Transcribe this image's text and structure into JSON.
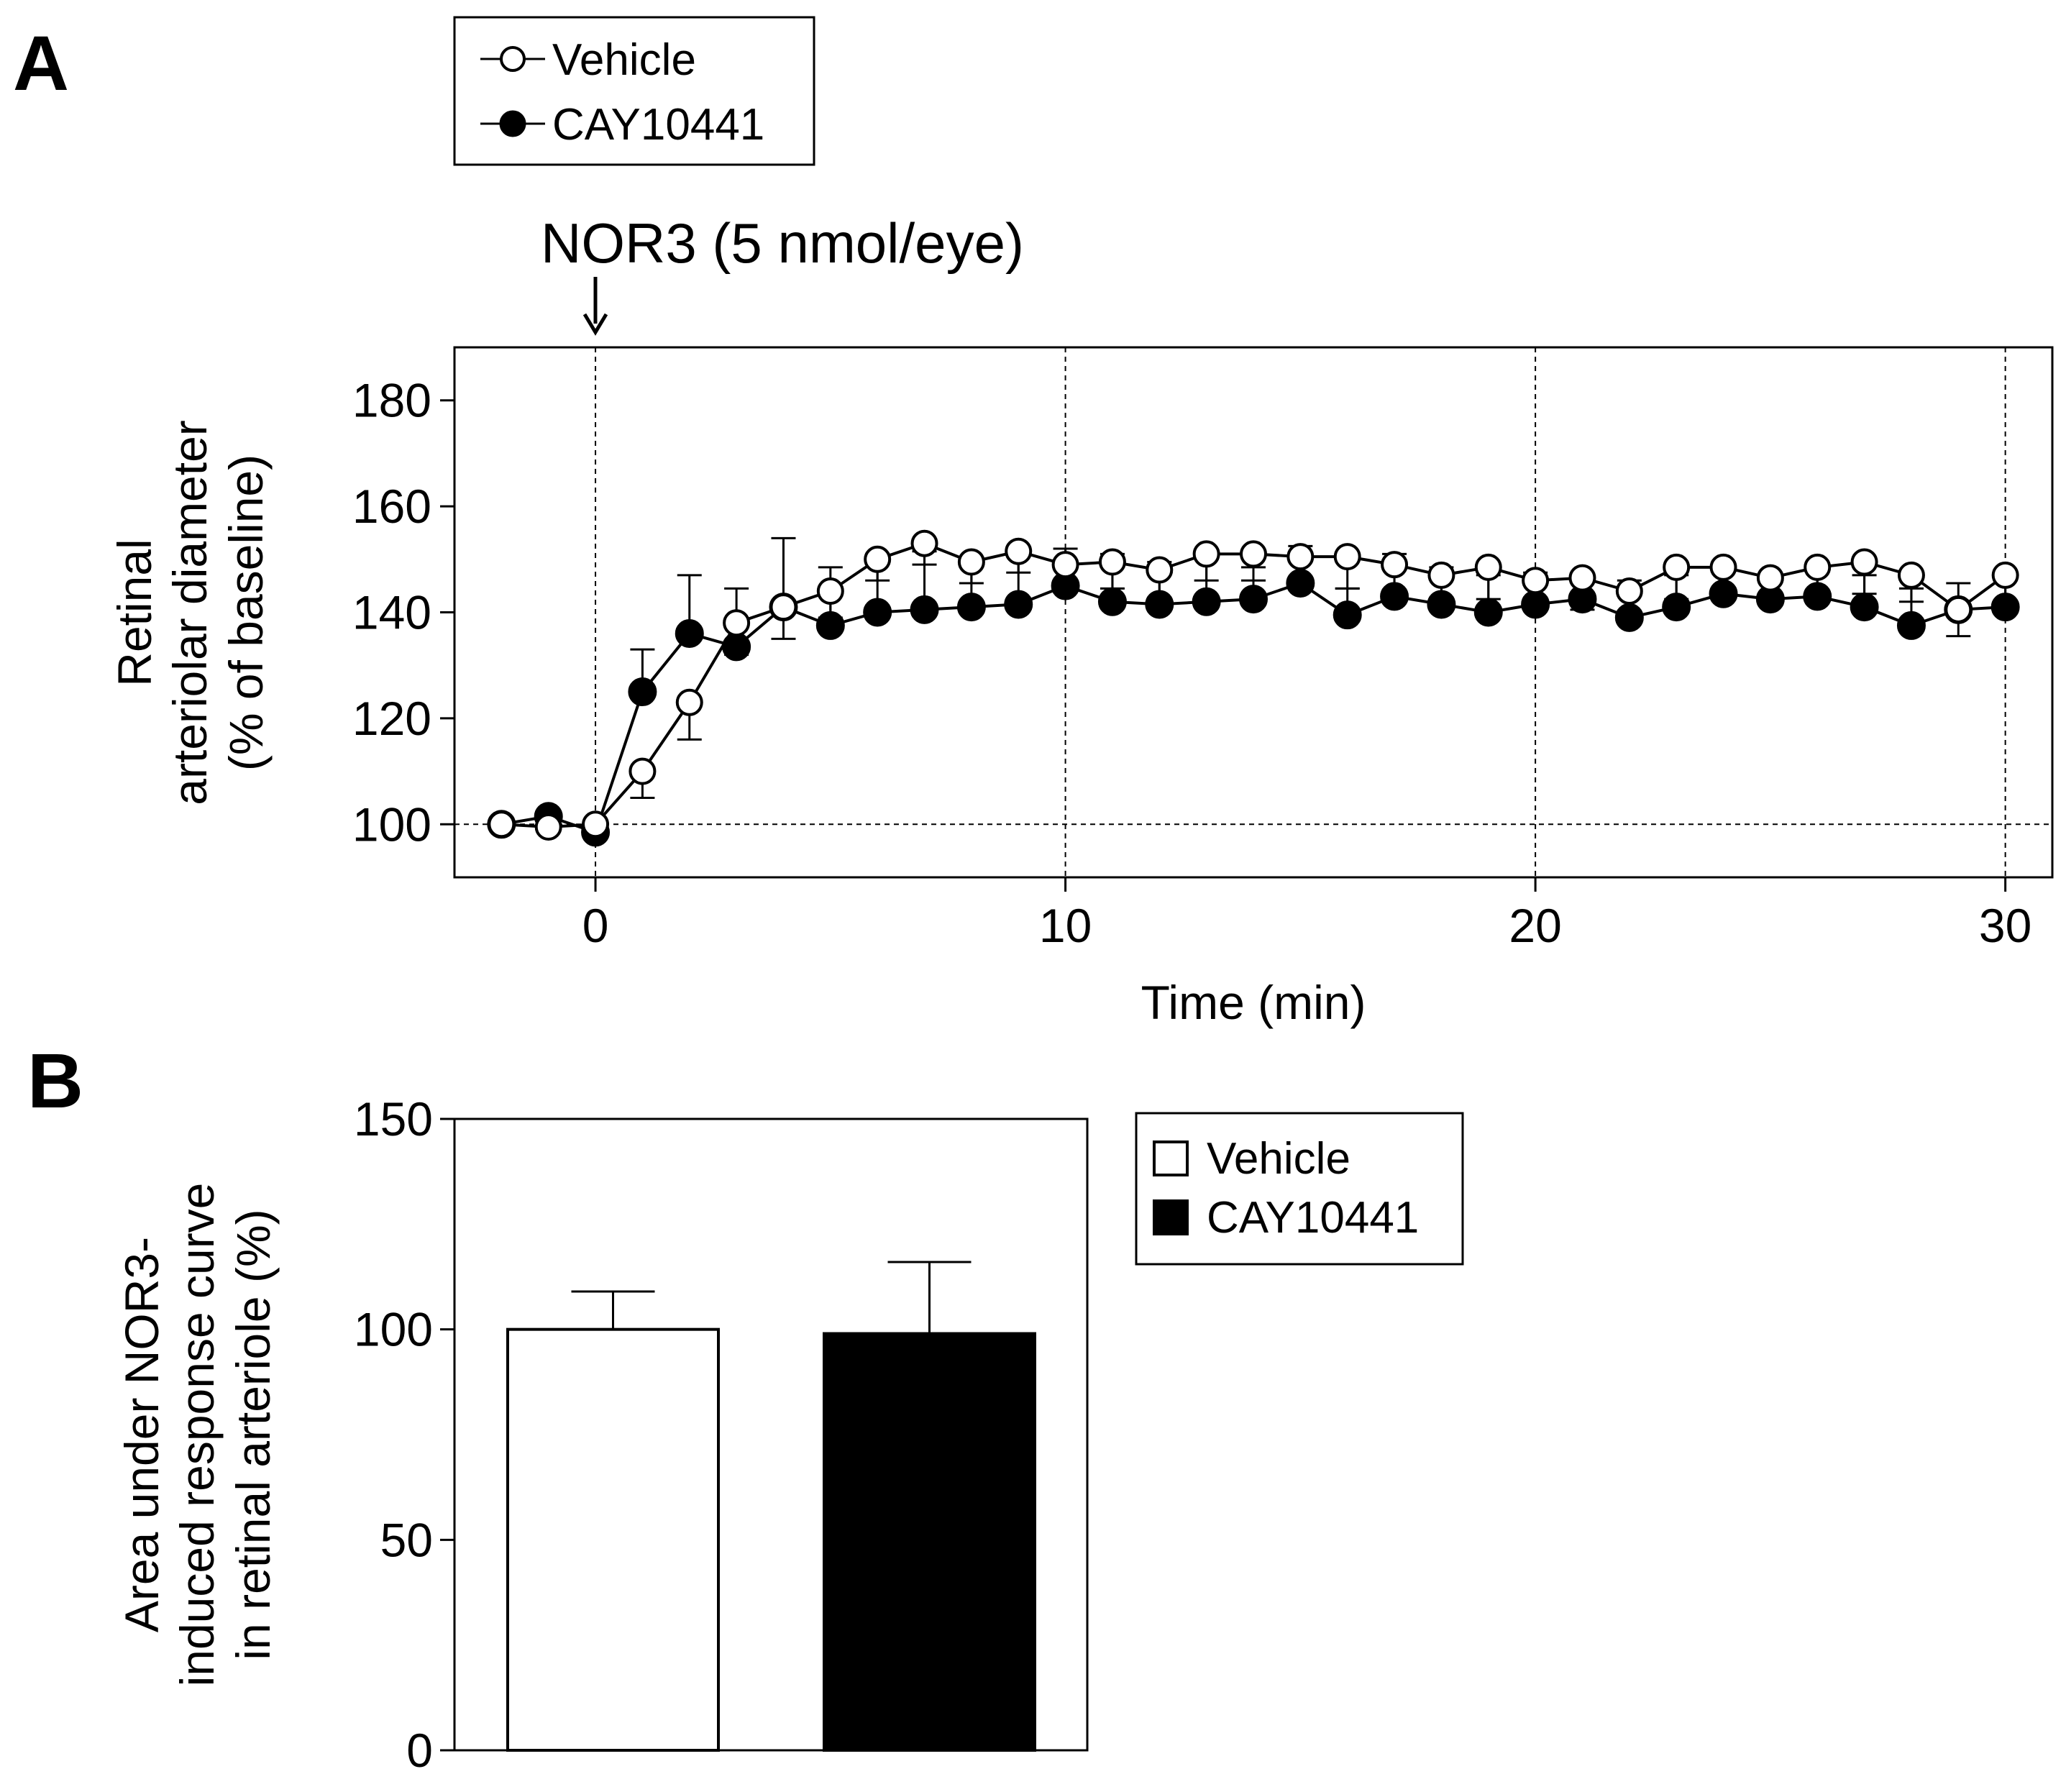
{
  "chart_data": [
    {
      "panel": "A",
      "type": "line",
      "title": "",
      "xlabel": "Time (min)",
      "ylabel": [
        "Retinal",
        "arteriolar diameter",
        "(% of baseline)"
      ],
      "xlim": [
        -3,
        31
      ],
      "ylim": [
        90,
        190
      ],
      "xticks": [
        0,
        10,
        20,
        30
      ],
      "yticks": [
        100,
        120,
        140,
        160,
        180
      ],
      "vlines": [
        0,
        10,
        20,
        30
      ],
      "hline": 100,
      "grid": false,
      "legend_position": "top-left, outside plot",
      "annotation": {
        "text": "NOR3 (5 nmol/eye)",
        "x": 0
      },
      "series": [
        {
          "name": "Vehicle",
          "marker": "open-circle",
          "x": [
            -2,
            -1,
            0,
            1,
            2,
            3,
            4,
            5,
            6,
            7,
            8,
            9,
            10,
            11,
            12,
            13,
            14,
            15,
            16,
            17,
            18,
            19,
            20,
            21,
            22,
            23,
            24,
            25,
            26,
            27,
            28,
            29,
            30
          ],
          "y": [
            100,
            99.5,
            100,
            110,
            123,
            138,
            141,
            144,
            150,
            153,
            149.5,
            151.5,
            149,
            149.5,
            148,
            151,
            151,
            150.5,
            150.5,
            149,
            147,
            148.5,
            146,
            146.5,
            144,
            148.5,
            148.5,
            146.5,
            148.5,
            149.5,
            147,
            140.5,
            147
          ],
          "error": [
            0,
            0,
            0,
            5,
            7,
            6,
            6,
            5,
            4,
            4,
            4,
            4,
            5,
            5,
            6,
            5,
            5,
            6,
            6,
            5,
            5,
            6,
            5,
            6,
            4,
            6,
            6,
            5,
            6,
            6,
            5,
            5,
            6
          ]
        },
        {
          "name": "CAY10441",
          "marker": "filled-circle",
          "x": [
            -2,
            -1,
            0,
            1,
            2,
            3,
            4,
            5,
            6,
            7,
            8,
            9,
            10,
            11,
            12,
            13,
            14,
            15,
            16,
            17,
            18,
            19,
            20,
            21,
            22,
            23,
            24,
            25,
            26,
            27,
            28,
            29,
            30
          ],
          "y": [
            100,
            101.5,
            98.5,
            125,
            136,
            133.5,
            141,
            137.5,
            140,
            140.5,
            141,
            141.5,
            145,
            142,
            141.5,
            142,
            142.5,
            145.5,
            139.5,
            143,
            141.5,
            140,
            141.5,
            142.5,
            139,
            141,
            143.5,
            142.5,
            143,
            141,
            137.5,
            140.5,
            141
          ],
          "error": [
            0,
            0,
            0,
            8,
            11,
            11,
            13,
            11,
            11,
            11,
            9,
            9,
            7,
            9,
            8,
            8,
            6,
            7,
            5,
            8,
            7,
            7,
            6,
            5,
            7,
            6,
            6,
            5,
            6,
            6,
            7,
            5,
            5
          ]
        }
      ]
    },
    {
      "panel": "B",
      "type": "bar",
      "title": "",
      "xlabel": "",
      "ylabel": [
        "Area under NOR3-",
        "induced response curve",
        "in retinal arteriole (%)"
      ],
      "ylim": [
        0,
        150
      ],
      "yticks": [
        0,
        50,
        100,
        150
      ],
      "legend_position": "right, outside plot",
      "categories": [
        "Vehicle",
        "CAY10441"
      ],
      "values": [
        100,
        99
      ],
      "errors": [
        9,
        17
      ],
      "colors": [
        "#ffffff",
        "#000000"
      ]
    }
  ]
}
